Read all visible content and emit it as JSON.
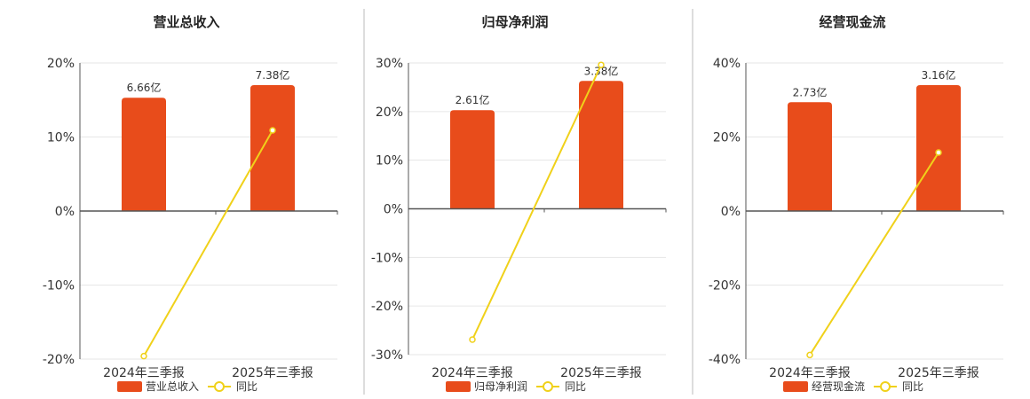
{
  "colors": {
    "bar": "#e84c1b",
    "line": "#f0d11a",
    "axis": "#555555",
    "grid": "#e6e6e6",
    "divider": "#bbbbbb"
  },
  "chart_data": [
    {
      "type": "bar",
      "title": "营业总收入",
      "categories": [
        "2024年三季报",
        "2025年三季报"
      ],
      "ylim": [
        -20,
        20
      ],
      "yticks": [
        20,
        10,
        0,
        -10,
        -20
      ],
      "tick_labels": [
        "20%",
        "10%",
        "0%",
        "-10%",
        "-20%"
      ],
      "series": [
        {
          "name": "营业总收入",
          "kind": "bar",
          "values": [
            15.3,
            17.0
          ],
          "labels": [
            "6.66亿",
            "7.38亿"
          ]
        },
        {
          "name": "同比",
          "kind": "line",
          "values": [
            -19.6,
            10.9
          ]
        }
      ],
      "legend_position": "bottom",
      "grid": true
    },
    {
      "type": "bar",
      "title": "归母净利润",
      "categories": [
        "2024年三季报",
        "2025年三季报"
      ],
      "ylim": [
        -30,
        30
      ],
      "yticks": [
        30,
        20,
        10,
        0,
        -10,
        -20,
        -30
      ],
      "tick_labels": [
        "30%",
        "20%",
        "10%",
        "0%",
        "-10%",
        "-20%",
        "-30%"
      ],
      "series": [
        {
          "name": "归母净利润",
          "kind": "bar",
          "values": [
            20.3,
            26.3
          ],
          "labels": [
            "2.61亿",
            "3.38亿"
          ]
        },
        {
          "name": "同比",
          "kind": "line",
          "values": [
            -26.9,
            29.6
          ]
        }
      ],
      "legend_position": "bottom",
      "grid": true
    },
    {
      "type": "bar",
      "title": "经营现金流",
      "categories": [
        "2024年三季报",
        "2025年三季报"
      ],
      "ylim": [
        -40,
        40
      ],
      "yticks": [
        40,
        20,
        0,
        -20,
        -40
      ],
      "tick_labels": [
        "40%",
        "20%",
        "0%",
        "-20%",
        "-40%"
      ],
      "series": [
        {
          "name": "经营现金流",
          "kind": "bar",
          "values": [
            29.4,
            34.0
          ],
          "labels": [
            "2.73亿",
            "3.16亿"
          ]
        },
        {
          "name": "同比",
          "kind": "line",
          "values": [
            -38.9,
            15.8
          ]
        }
      ],
      "legend_position": "bottom",
      "grid": true
    }
  ]
}
